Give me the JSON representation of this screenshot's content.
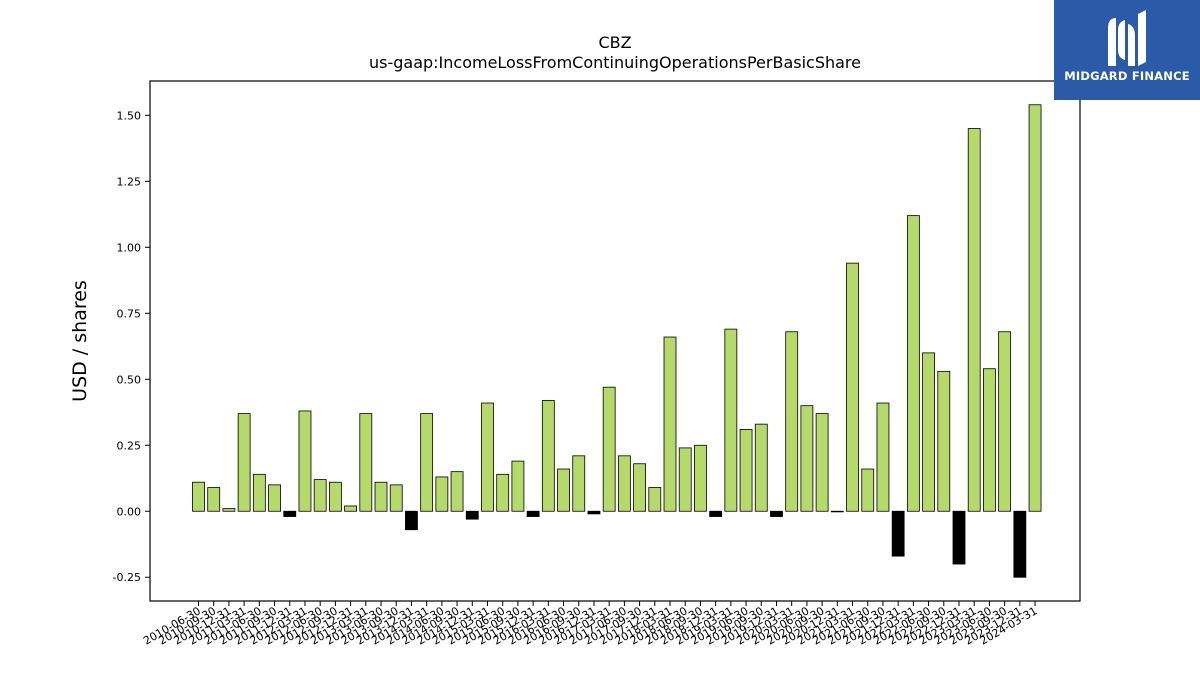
{
  "chart_data": {
    "type": "bar",
    "title": "CBZ",
    "subtitle": "us-gaap:IncomeLossFromContinuingOperationsPerBasicShare",
    "xlabel": "",
    "ylabel": "USD / shares",
    "ylim": [
      -0.34,
      1.63
    ],
    "yticks": [
      "-0.25",
      "0.00",
      "0.25",
      "0.50",
      "0.75",
      "1.00",
      "1.25",
      "1.50"
    ],
    "grid": false,
    "positive_color": "#b5d96b",
    "negative_color": "#000000",
    "categories": [
      "2010-06-30",
      "2010-09-30",
      "2010-12-31",
      "2011-03-31",
      "2011-06-30",
      "2011-09-30",
      "2011-12-31",
      "2012-03-31",
      "2012-06-30",
      "2012-09-30",
      "2012-12-31",
      "2013-03-31",
      "2013-06-30",
      "2013-09-30",
      "2013-12-31",
      "2014-03-31",
      "2014-06-30",
      "2014-09-30",
      "2014-12-31",
      "2015-03-31",
      "2015-06-30",
      "2015-09-30",
      "2015-12-31",
      "2016-03-31",
      "2016-06-30",
      "2016-09-30",
      "2016-12-31",
      "2017-03-31",
      "2017-06-30",
      "2017-09-30",
      "2017-12-31",
      "2018-03-31",
      "2018-06-30",
      "2018-09-30",
      "2018-12-31",
      "2019-03-31",
      "2019-06-30",
      "2019-09-30",
      "2019-12-31",
      "2020-03-31",
      "2020-06-30",
      "2020-09-30",
      "2020-12-31",
      "2021-03-31",
      "2021-06-30",
      "2021-09-30",
      "2021-12-31",
      "2022-03-31",
      "2022-06-30",
      "2022-09-30",
      "2022-12-31",
      "2023-03-31",
      "2023-06-30",
      "2023-09-30",
      "2023-12-31",
      "2024-03-31"
    ],
    "values": [
      0.11,
      0.09,
      0.01,
      0.37,
      0.14,
      0.1,
      -0.02,
      0.38,
      0.12,
      0.11,
      0.02,
      0.37,
      0.11,
      0.1,
      -0.07,
      0.37,
      0.13,
      0.15,
      -0.03,
      0.41,
      0.14,
      0.19,
      -0.02,
      0.42,
      0.16,
      0.21,
      -0.01,
      0.47,
      0.21,
      0.18,
      0.09,
      0.66,
      0.24,
      0.25,
      -0.02,
      0.69,
      0.31,
      0.33,
      -0.02,
      0.68,
      0.4,
      0.37,
      0.0,
      0.94,
      0.16,
      0.41,
      -0.17,
      1.12,
      0.6,
      0.53,
      -0.2,
      1.45,
      0.54,
      0.68,
      -0.25,
      1.54
    ]
  },
  "logo": {
    "name": "MIDGARD FINANCE",
    "icon": "midgard-logo-icon"
  }
}
